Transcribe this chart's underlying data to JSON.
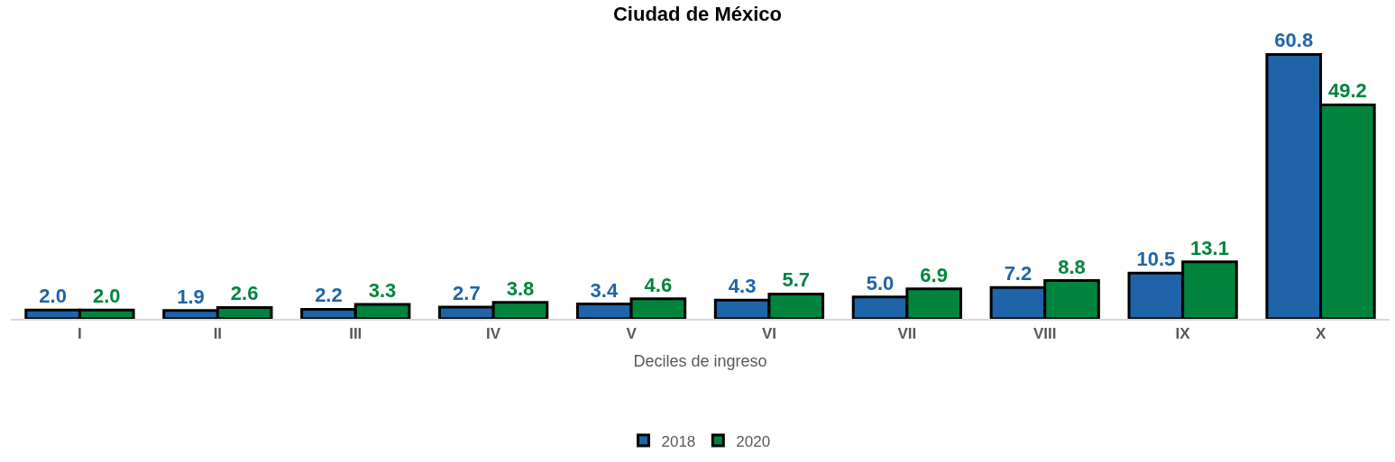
{
  "chart_data": {
    "type": "bar",
    "title": "Ciudad de México",
    "xlabel": "Deciles de ingreso",
    "categories": [
      "I",
      "II",
      "III",
      "IV",
      "V",
      "VI",
      "VII",
      "VIII",
      "IX",
      "X"
    ],
    "series": [
      {
        "name": "2018",
        "color": "#1f64a8",
        "values": [
          2.0,
          1.9,
          2.2,
          2.7,
          3.4,
          4.3,
          5.0,
          7.2,
          10.5,
          60.8
        ],
        "value_labels": [
          "2.0",
          "1.9",
          "2.2",
          "2.7",
          "3.4",
          "4.3",
          "5.0",
          "7.2",
          "10.5",
          "60.8"
        ]
      },
      {
        "name": "2020",
        "color": "#00843d",
        "values": [
          2.0,
          2.6,
          3.3,
          3.8,
          4.6,
          5.7,
          6.9,
          8.8,
          13.1,
          49.2
        ],
        "value_labels": [
          "2.0",
          "2.6",
          "3.3",
          "3.8",
          "4.6",
          "5.7",
          "6.9",
          "8.8",
          "13.1",
          "49.2"
        ]
      }
    ],
    "legend": "bottom"
  }
}
